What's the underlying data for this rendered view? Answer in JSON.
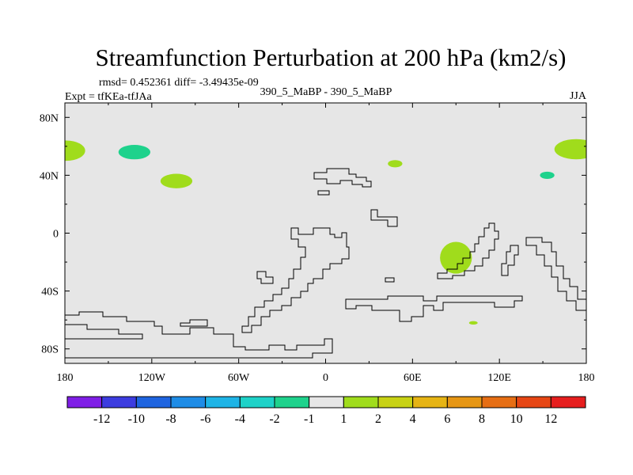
{
  "chart_data": {
    "type": "heatmap",
    "title": "Streamfunction Perturbation at 200 hPa (km2/s)",
    "stats_text": "rmsd= 0.452361 diff= -3.49435e-09",
    "experiment_text": "Expt = tfKEa-tfJAa",
    "center_text": "390_5_MaBP - 390_5_MaBP",
    "season_text": "JJA",
    "xlim": [
      -180,
      180
    ],
    "ylim": [
      -90,
      90
    ],
    "x_ticks": [
      {
        "value": -180,
        "label": "180"
      },
      {
        "value": -120,
        "label": "120W"
      },
      {
        "value": -60,
        "label": "60W"
      },
      {
        "value": 0,
        "label": "0"
      },
      {
        "value": 60,
        "label": "60E"
      },
      {
        "value": 120,
        "label": "120E"
      },
      {
        "value": 180,
        "label": "180"
      }
    ],
    "y_ticks": [
      {
        "value": 80,
        "label": "80N"
      },
      {
        "value": 40,
        "label": "40N"
      },
      {
        "value": 0,
        "label": "0"
      },
      {
        "value": -40,
        "label": "40S"
      },
      {
        "value": -80,
        "label": "80S"
      }
    ],
    "background_value_color": "#e6e6e6",
    "anomalies": [
      {
        "lon": -179,
        "lat": 57,
        "rx": 13,
        "ry": 7,
        "value": 1.5,
        "color": "#a0dc1c"
      },
      {
        "lon": -132,
        "lat": 56,
        "rx": 11,
        "ry": 5,
        "value": -1.5,
        "color": "#1ed28c"
      },
      {
        "lon": -103,
        "lat": 36,
        "rx": 11,
        "ry": 5,
        "value": 1.5,
        "color": "#a0dc1c"
      },
      {
        "lon": 48,
        "lat": 48,
        "rx": 5,
        "ry": 2.5,
        "value": 1.5,
        "color": "#a0dc1c"
      },
      {
        "lon": 153,
        "lat": 40,
        "rx": 5,
        "ry": 2.5,
        "value": -1.5,
        "color": "#1ed28c"
      },
      {
        "lon": 173,
        "lat": 58,
        "rx": 15,
        "ry": 7,
        "value": 1.5,
        "color": "#a0dc1c"
      },
      {
        "lon": 90,
        "lat": -17,
        "rx": 11,
        "ry": 11,
        "value": 1.5,
        "color": "#a0dc1c"
      },
      {
        "lon": 102,
        "lat": -62,
        "rx": 3,
        "ry": 1.2,
        "value": 1.5,
        "color": "#a0dc1c"
      }
    ],
    "colorbar": {
      "colors": [
        "#7f1ee6",
        "#3c3ce0",
        "#1e64e0",
        "#1e8ce6",
        "#1eb4e6",
        "#1ed2c8",
        "#1ed28c",
        "#e6e6e6",
        "#a0dc1c",
        "#c8d214",
        "#e6b414",
        "#e69614",
        "#e66e14",
        "#e64614",
        "#e61e1e"
      ],
      "labels": [
        "-12",
        "-10",
        "-8",
        "-6",
        "-4",
        "-2",
        "-1",
        "1",
        "2",
        "4",
        "6",
        "8",
        "10",
        "12"
      ]
    }
  }
}
